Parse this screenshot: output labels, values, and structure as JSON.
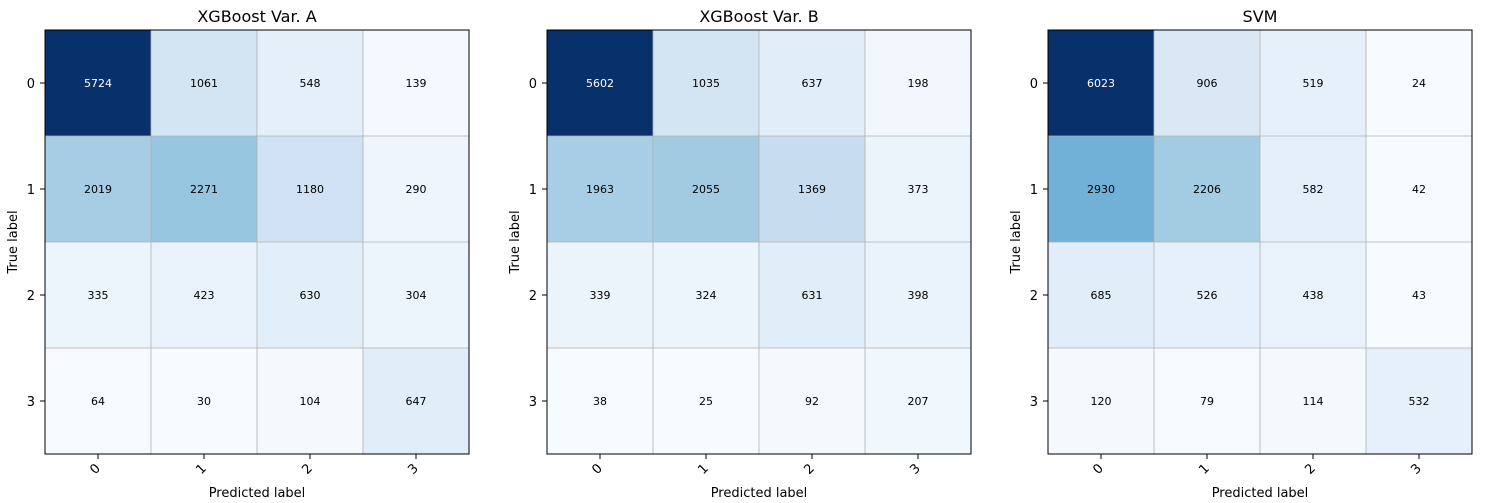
{
  "chart_data": [
    {
      "type": "heatmap",
      "title": "XGBoost Var. A",
      "xlabel": "Predicted label",
      "ylabel": "True label",
      "x_tick_labels": [
        "0",
        "1",
        "2",
        "3"
      ],
      "y_tick_labels": [
        "0",
        "1",
        "2",
        "3"
      ],
      "colormap": "Blues",
      "matrix": [
        [
          5724,
          1061,
          548,
          139
        ],
        [
          2019,
          2271,
          1180,
          290
        ],
        [
          335,
          423,
          630,
          304
        ],
        [
          64,
          30,
          104,
          647
        ]
      ],
      "matrix_text": [
        [
          "5724",
          "1061",
          "548",
          "139"
        ],
        [
          "2019",
          "2271",
          "1180",
          "290"
        ],
        [
          "335",
          "423",
          "630",
          "304"
        ],
        [
          "64",
          "30",
          "104",
          "647"
        ]
      ]
    },
    {
      "type": "heatmap",
      "title": "XGBoost Var. B",
      "xlabel": "Predicted label",
      "ylabel": "True label",
      "x_tick_labels": [
        "0",
        "1",
        "2",
        "3"
      ],
      "y_tick_labels": [
        "0",
        "1",
        "2",
        "3"
      ],
      "colormap": "Blues",
      "matrix": [
        [
          5602,
          1035,
          637,
          198
        ],
        [
          1963,
          2055,
          1369,
          373
        ],
        [
          339,
          324,
          631,
          398
        ],
        [
          38,
          25,
          92,
          207
        ]
      ],
      "matrix_text": [
        [
          "5602",
          "1035",
          "637",
          "198"
        ],
        [
          "1963",
          "2055",
          "1369",
          "373"
        ],
        [
          "339",
          "324",
          "631",
          "398"
        ],
        [
          "38",
          "25",
          "92",
          "207"
        ]
      ]
    },
    {
      "type": "heatmap",
      "title": "SVM",
      "xlabel": "Predicted label",
      "ylabel": "True label",
      "x_tick_labels": [
        "0",
        "1",
        "2",
        "3"
      ],
      "y_tick_labels": [
        "0",
        "1",
        "2",
        "3"
      ],
      "colormap": "Blues",
      "matrix": [
        [
          6023,
          906,
          519,
          24
        ],
        [
          2930,
          2206,
          582,
          42
        ],
        [
          685,
          526,
          438,
          43
        ],
        [
          120,
          79,
          114,
          532
        ]
      ],
      "matrix_text": [
        [
          "6023",
          "906",
          "519",
          "24"
        ],
        [
          "2930",
          "2206",
          "582",
          "42"
        ],
        [
          "685",
          "526",
          "438",
          "43"
        ],
        [
          "120",
          "79",
          "114",
          "532"
        ]
      ]
    }
  ]
}
